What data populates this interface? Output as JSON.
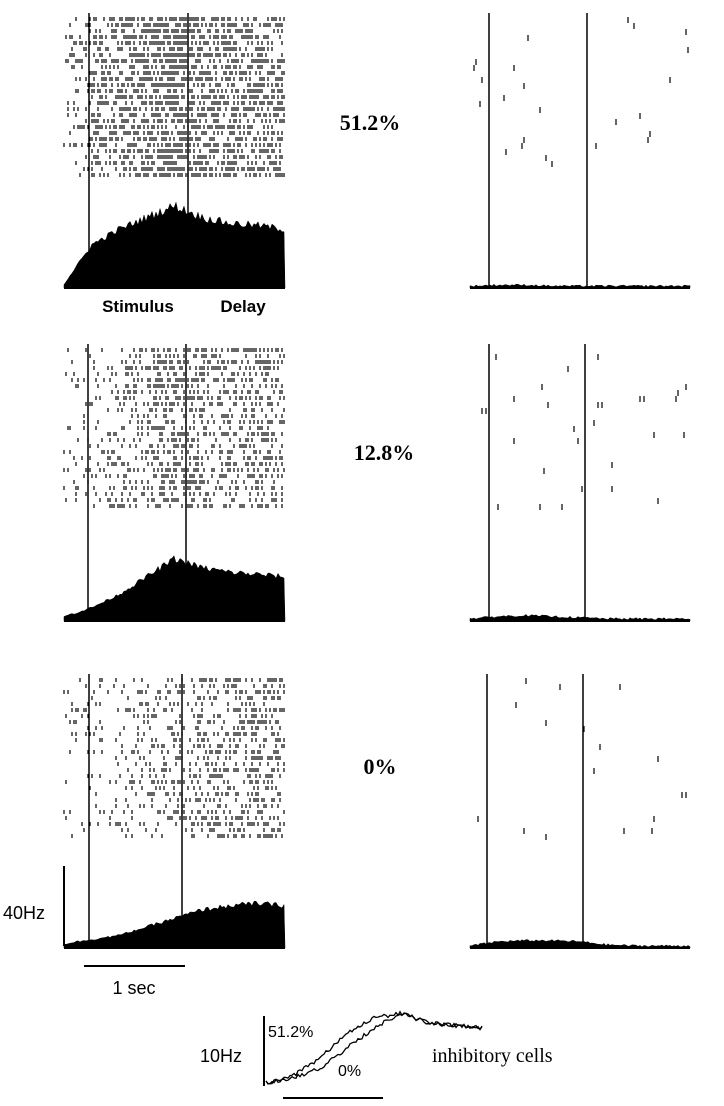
{
  "panels": {
    "coherence_labels": [
      "51.2%",
      "12.8%",
      "0%"
    ],
    "epoch_labels": {
      "stimulus": "Stimulus",
      "delay": "Delay"
    },
    "scale_bars": {
      "rate": "40Hz",
      "time": "1 sec"
    }
  },
  "inset": {
    "scale_label": "10Hz",
    "high_label": "51.2%",
    "low_label": "0%",
    "caption": "inhibitory cells"
  },
  "chart_data": [
    {
      "type": "area",
      "panel": "excitatory",
      "coherence": "51.2%",
      "x_unit": "sec",
      "epochs": [
        "Stimulus",
        "Delay"
      ],
      "x": [
        0,
        0.25,
        0.5,
        0.75,
        1.0,
        1.25,
        1.5,
        1.75,
        2.0
      ],
      "values": [
        2,
        22,
        30,
        36,
        42,
        36,
        33,
        32,
        30
      ],
      "ylabel": "40Hz"
    },
    {
      "type": "area",
      "panel": "inhibitory-raster",
      "coherence": "51.2%",
      "x_unit": "sec",
      "x": [
        0,
        0.25,
        0.5,
        0.75,
        1.0,
        1.25,
        1.5,
        1.75,
        2.0
      ],
      "values": [
        1,
        1.5,
        1.5,
        1,
        1,
        1,
        1,
        1,
        1
      ]
    },
    {
      "type": "area",
      "panel": "excitatory",
      "coherence": "12.8%",
      "x_unit": "sec",
      "x": [
        0,
        0.25,
        0.5,
        0.75,
        1.0,
        1.25,
        1.5,
        1.75,
        2.0
      ],
      "values": [
        2,
        6,
        12,
        20,
        28,
        24,
        22,
        21,
        20
      ]
    },
    {
      "type": "area",
      "panel": "inhibitory-raster",
      "coherence": "12.8%",
      "x_unit": "sec",
      "x": [
        0,
        0.25,
        0.5,
        0.75,
        1.0,
        1.25,
        1.5,
        1.75,
        2.0
      ],
      "values": [
        1,
        2,
        2.5,
        2,
        1.5,
        1,
        1,
        1,
        1
      ]
    },
    {
      "type": "area",
      "panel": "excitatory",
      "coherence": "0%",
      "x_unit": "sec",
      "x": [
        0,
        0.25,
        0.5,
        0.75,
        1.0,
        1.25,
        1.5,
        1.75,
        2.0
      ],
      "values": [
        2,
        4,
        6,
        10,
        14,
        18,
        20,
        21,
        20
      ]
    },
    {
      "type": "area",
      "panel": "inhibitory-raster",
      "coherence": "0%",
      "x_unit": "sec",
      "x": [
        0,
        0.25,
        0.5,
        0.75,
        1.0,
        1.25,
        1.5,
        1.75,
        2.0
      ],
      "values": [
        1,
        3,
        3.5,
        3.5,
        3,
        1.5,
        1,
        1,
        1
      ]
    },
    {
      "type": "line",
      "panel": "inhibitory-cells-inset",
      "x_unit": "sec",
      "series": [
        {
          "name": "51.2%",
          "x": [
            0,
            0.25,
            0.5,
            0.75,
            1.0,
            1.25,
            1.5,
            1.75,
            2.0
          ],
          "values": [
            2,
            5,
            12,
            22,
            28,
            30,
            26,
            25,
            24
          ]
        },
        {
          "name": "0%",
          "x": [
            0,
            0.25,
            0.5,
            0.75,
            1.0,
            1.25,
            1.5,
            1.75,
            2.0
          ],
          "values": [
            2,
            4,
            8,
            16,
            24,
            30,
            26,
            25,
            24
          ]
        }
      ],
      "ylabel": "10Hz"
    }
  ]
}
